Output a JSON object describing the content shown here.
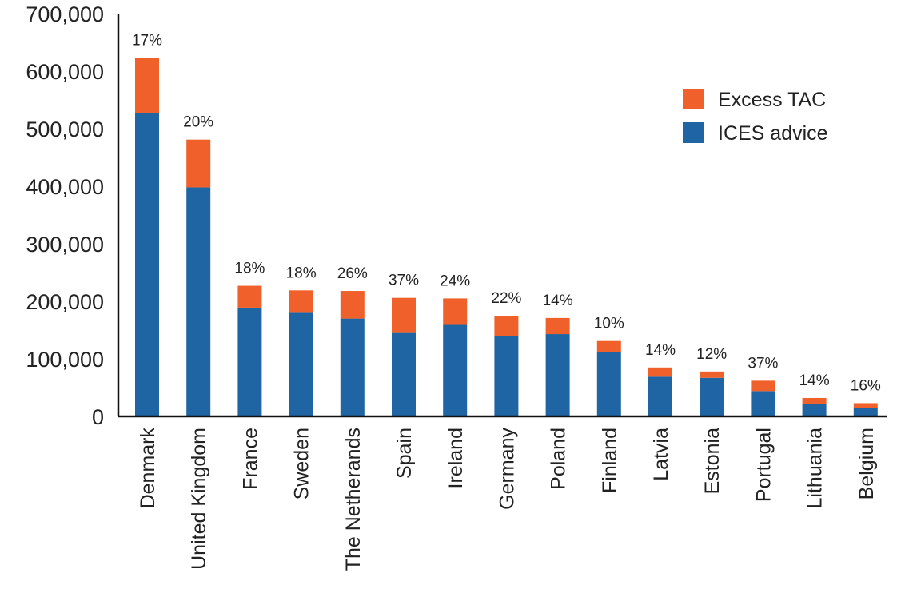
{
  "chart_data": {
    "type": "bar",
    "stacked": true,
    "categories": [
      "Denmark",
      "United Kingdom",
      "France",
      "Sweden",
      "The Netherands",
      "Spain",
      "Ireland",
      "Germany",
      "Poland",
      "Finland",
      "Latvia",
      "Estonia",
      "Portugal",
      "Lithuania",
      "Belgium"
    ],
    "series": [
      {
        "name": "ICES advice",
        "color": "#1f65a3",
        "values": [
          527000,
          398000,
          189000,
          180000,
          170000,
          145000,
          159000,
          140000,
          143000,
          112000,
          69000,
          67000,
          44000,
          22000,
          15000
        ]
      },
      {
        "name": "Excess TAC",
        "color": "#f0602a",
        "values": [
          96000,
          83000,
          38000,
          39000,
          48000,
          61000,
          46000,
          35000,
          28000,
          19000,
          16000,
          11000,
          18000,
          10000,
          8000
        ]
      }
    ],
    "data_labels": [
      "17%",
      "20%",
      "18%",
      "18%",
      "26%",
      "37%",
      "24%",
      "22%",
      "14%",
      "10%",
      "14%",
      "12%",
      "37%",
      "14%",
      "16%"
    ],
    "yticks": [
      0,
      100000,
      200000,
      300000,
      400000,
      500000,
      600000,
      700000
    ],
    "ytick_labels": [
      "0",
      "100,000",
      "200,000",
      "300,000",
      "400,000",
      "500,000",
      "600,000",
      "700,000"
    ],
    "ylim": [
      0,
      700000
    ],
    "legend": {
      "position": "top-right",
      "entries": [
        "Excess TAC",
        "ICES advice"
      ]
    },
    "grid": false
  }
}
